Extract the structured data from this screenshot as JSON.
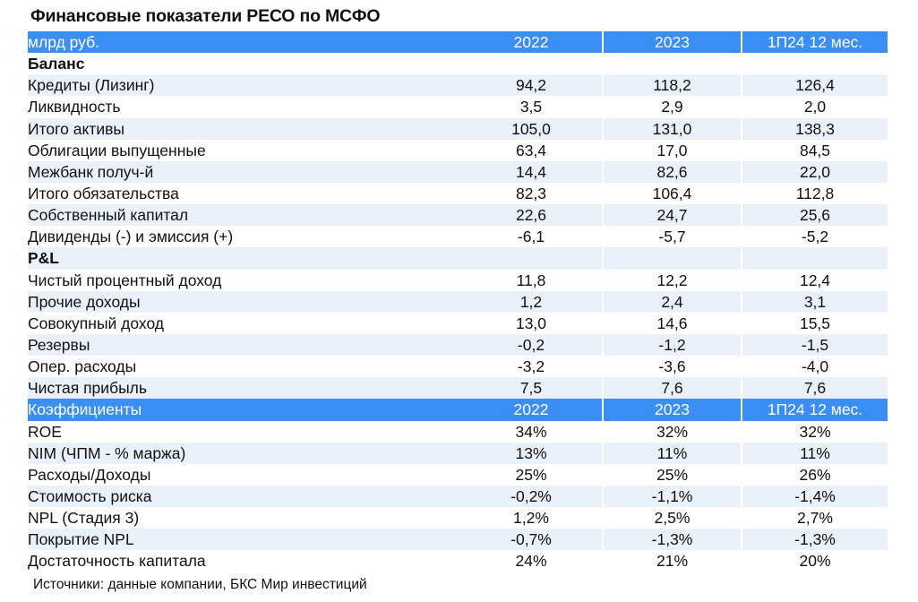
{
  "title": "Финансовые показатели РЕСО по МСФО",
  "header": {
    "label": "млрд руб.",
    "cols": [
      "2022",
      "2023",
      "1П24 12 мес."
    ]
  },
  "balance_section": "Баланс",
  "balance_rows": [
    {
      "label": "Кредиты (Лизинг)",
      "v": [
        "94,2",
        "118,2",
        "126,4"
      ]
    },
    {
      "label": "Ликвидность",
      "v": [
        "3,5",
        "2,9",
        "2,0"
      ]
    },
    {
      "label": "Итого активы",
      "v": [
        "105,0",
        "131,0",
        "138,3"
      ]
    },
    {
      "label": "Облигации выпущенные",
      "v": [
        "63,4",
        "17,0",
        "84,5"
      ]
    },
    {
      "label": "Межбанк получ-й",
      "v": [
        "14,4",
        "82,6",
        "22,0"
      ]
    },
    {
      "label": "Итого обязательства",
      "v": [
        "82,3",
        "106,4",
        "112,8"
      ]
    },
    {
      "label": "Собственный капитал",
      "v": [
        "22,6",
        "24,7",
        "25,6"
      ]
    },
    {
      "label": "Дивиденды (-) и эмиссия (+)",
      "v": [
        "-6,1",
        "-5,7",
        "-5,2"
      ]
    }
  ],
  "pl_section": "P&L",
  "pl_rows": [
    {
      "label": "Чистый процентный доход",
      "v": [
        "11,8",
        "12,2",
        "12,4"
      ]
    },
    {
      "label": "Прочие доходы",
      "v": [
        "1,2",
        "2,4",
        "3,1"
      ]
    },
    {
      "label": "Совокупный доход",
      "v": [
        "13,0",
        "14,6",
        "15,5"
      ]
    },
    {
      "label": "Резервы",
      "v": [
        "-0,2",
        "-1,2",
        "-1,5"
      ]
    },
    {
      "label": "Опер. расходы",
      "v": [
        "-3,2",
        "-3,6",
        "-4,0"
      ]
    },
    {
      "label": "Чистая прибыль",
      "v": [
        "7,5",
        "7,6",
        "7,6"
      ]
    }
  ],
  "ratios_header": {
    "label": "Коэффициенты",
    "cols": [
      "2022",
      "2023",
      "1П24 12 мес."
    ]
  },
  "ratio_rows": [
    {
      "label": "ROE",
      "v": [
        "34%",
        "32%",
        "32%"
      ]
    },
    {
      "label": "NIM (ЧПМ - % маржа)",
      "v": [
        "13%",
        "11%",
        "11%"
      ]
    },
    {
      "label": "Расходы/Доходы",
      "v": [
        "25%",
        "25%",
        "26%"
      ]
    },
    {
      "label": "Стоимость риска",
      "v": [
        "-0,2%",
        "-1,1%",
        "-1,4%"
      ]
    },
    {
      "label": "NPL (Стадия 3)",
      "v": [
        "1,2%",
        "2,5%",
        "2,7%"
      ]
    },
    {
      "label": "Покрытие NPL",
      "v": [
        "-0,7%",
        "-1,3%",
        "-1,3%"
      ]
    },
    {
      "label": "Достаточность капитала",
      "v": [
        "24%",
        "21%",
        "20%"
      ]
    }
  ],
  "source": "Источники: данные компании, БКС Мир инвестиций",
  "colors": {
    "header_bg": "#3a8ef6",
    "stripe": "#eaf1fb"
  }
}
